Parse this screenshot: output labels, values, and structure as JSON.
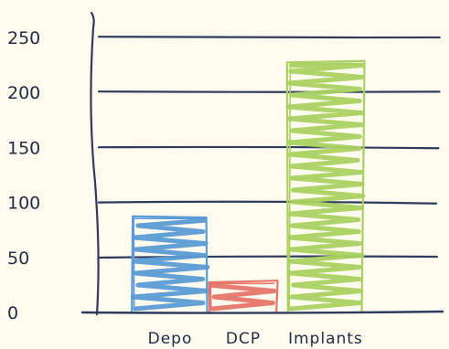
{
  "chart_data": {
    "type": "bar",
    "categories": [
      "Depo",
      "DCP",
      "Implants"
    ],
    "values": [
      87,
      28,
      228
    ],
    "colors": [
      "#5b9bd5",
      "#e6766b",
      "#a9d162"
    ],
    "ylim": [
      0,
      250
    ],
    "yticks": [
      0,
      50,
      100,
      150,
      200,
      250
    ],
    "grid": true,
    "title": "",
    "xlabel": "",
    "ylabel": "",
    "style": "hand-drawn sketch",
    "line_color": "#2d3c5e",
    "background": "#fefaed"
  }
}
